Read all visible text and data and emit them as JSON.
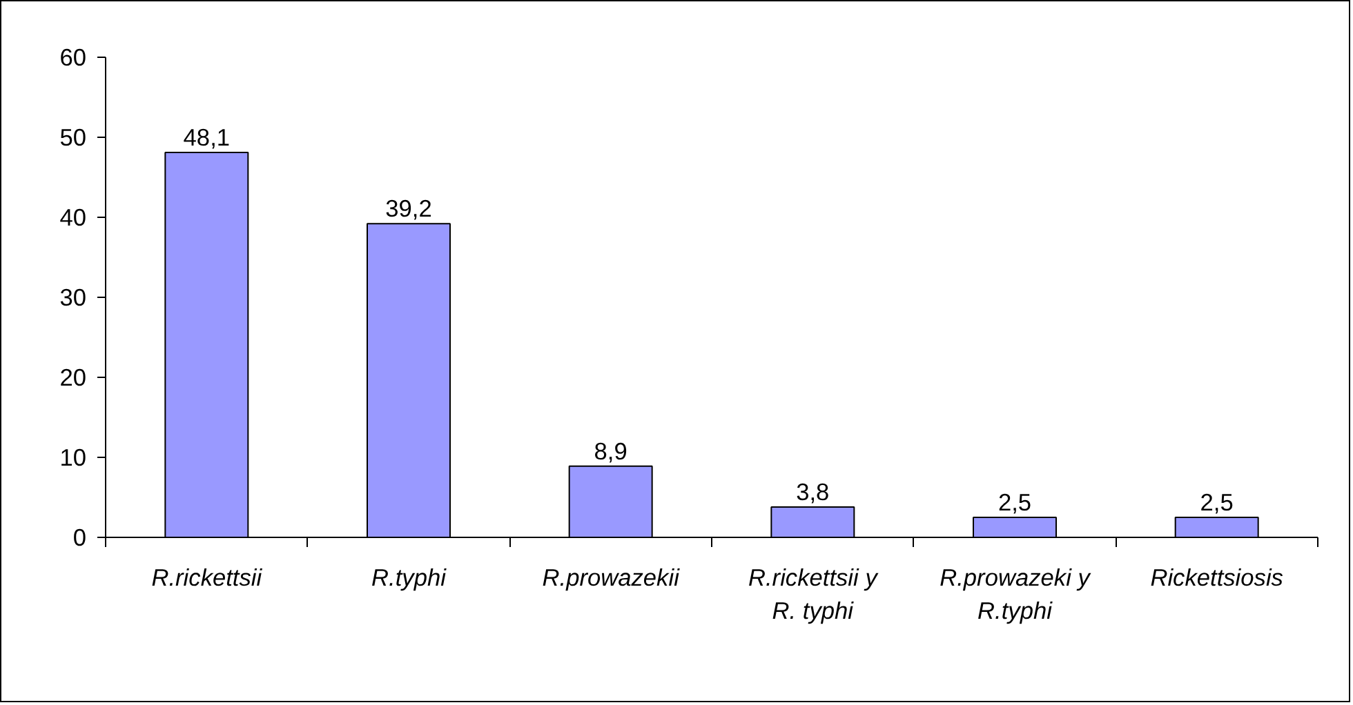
{
  "chart_data": {
    "type": "bar",
    "categories": [
      "R.rickettsii",
      "R.typhi",
      "R.prowazekii",
      "R.rickettsii y R. typhi",
      "R.prowazeki y R.typhi",
      "Rickettsiosis"
    ],
    "values": [
      48.1,
      39.2,
      8.9,
      3.8,
      2.5,
      2.5
    ],
    "value_labels": [
      "48,1",
      "39,2",
      "8,9",
      "3,8",
      "2,5",
      "2,5"
    ],
    "color": "#9999ff",
    "ylim": [
      0,
      60
    ],
    "yticks": [
      0,
      10,
      20,
      30,
      40,
      50,
      60
    ],
    "grid": false
  }
}
